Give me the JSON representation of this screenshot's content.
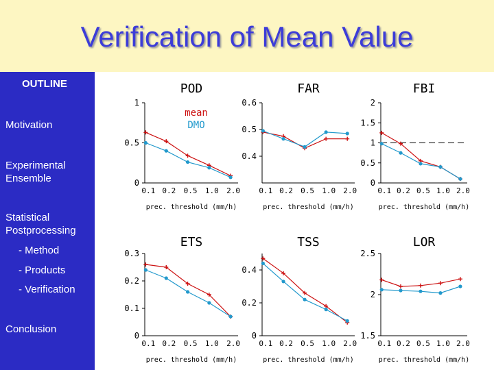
{
  "title": "Verification of Mean Value",
  "sidebar": {
    "outline": "OUTLINE",
    "items": [
      {
        "label": "Motivation"
      },
      {
        "label": "Experimental\nEnsemble"
      },
      {
        "label": "Statistical\nPostprocessing"
      },
      {
        "label": "- Method"
      },
      {
        "label": "- Products"
      },
      {
        "label": "- Verification"
      },
      {
        "label": "Conclusion"
      }
    ]
  },
  "colors": {
    "title": "#3c3cd8",
    "sidebar": "#2b2bc4",
    "header": "#fdf6c2",
    "mean": "#cc1111",
    "dmo": "#2299cc"
  },
  "legend": {
    "mean": "mean",
    "dmo": "DMO"
  },
  "chart_data": [
    {
      "type": "line",
      "title": "POD",
      "categories": [
        "0.1",
        "0.2",
        "0.5",
        "1.0",
        "2.0"
      ],
      "xlabel": "prec. threshold (mm/h)",
      "ylim": [
        0,
        1
      ],
      "yticks": [
        "0",
        "0.5",
        "1"
      ],
      "series": [
        {
          "name": "mean",
          "values": [
            0.63,
            0.52,
            0.34,
            0.22,
            0.09
          ]
        },
        {
          "name": "DMO",
          "values": [
            0.5,
            0.4,
            0.26,
            0.19,
            0.07
          ]
        }
      ]
    },
    {
      "type": "line",
      "title": "FAR",
      "categories": [
        "0.1",
        "0.2",
        "0.5",
        "1.0",
        "2.0"
      ],
      "xlabel": "prec. threshold (mm/h)",
      "ylim": [
        0.3,
        0.6
      ],
      "yticks": [
        "0.4",
        "0.5",
        "0.6"
      ],
      "series": [
        {
          "name": "mean",
          "values": [
            0.49,
            0.475,
            0.43,
            0.465,
            0.465
          ]
        },
        {
          "name": "DMO",
          "values": [
            0.495,
            0.465,
            0.435,
            0.49,
            0.485
          ]
        }
      ]
    },
    {
      "type": "line",
      "title": "FBI",
      "categories": [
        "0.1",
        "0.2",
        "0.5",
        "1.0",
        "2.0"
      ],
      "xlabel": "prec. threshold (mm/h)",
      "ylim": [
        0,
        2
      ],
      "yticks": [
        "0",
        "0.5",
        "1",
        "1.5",
        "2"
      ],
      "reference_line": 1,
      "series": [
        {
          "name": "mean",
          "values": [
            1.25,
            0.98,
            0.55,
            0.4,
            0.1
          ]
        },
        {
          "name": "DMO",
          "values": [
            0.98,
            0.75,
            0.48,
            0.4,
            0.1
          ]
        }
      ]
    },
    {
      "type": "line",
      "title": "ETS",
      "categories": [
        "0.1",
        "0.2",
        "0.5",
        "1.0",
        "2.0"
      ],
      "xlabel": "prec. threshold (mm/h)",
      "ylim": [
        0,
        0.3
      ],
      "yticks": [
        "0",
        "0.1",
        "0.2",
        "0.3"
      ],
      "series": [
        {
          "name": "mean",
          "values": [
            0.26,
            0.25,
            0.19,
            0.15,
            0.07
          ]
        },
        {
          "name": "DMO",
          "values": [
            0.24,
            0.21,
            0.16,
            0.12,
            0.07
          ]
        }
      ]
    },
    {
      "type": "line",
      "title": "TSS",
      "categories": [
        "0.1",
        "0.2",
        "0.5",
        "1.0",
        "2.0"
      ],
      "xlabel": "prec. threshold (mm/h)",
      "ylim": [
        0,
        0.5
      ],
      "yticks": [
        "0",
        "0.2",
        "0.4"
      ],
      "series": [
        {
          "name": "mean",
          "values": [
            0.47,
            0.38,
            0.26,
            0.18,
            0.08
          ]
        },
        {
          "name": "DMO",
          "values": [
            0.44,
            0.33,
            0.22,
            0.16,
            0.09
          ]
        }
      ]
    },
    {
      "type": "line",
      "title": "LOR",
      "categories": [
        "0.1",
        "0.2",
        "0.5",
        "1.0",
        "2.0"
      ],
      "xlabel": "prec. threshold (mm/h)",
      "ylim": [
        1.5,
        2.5
      ],
      "yticks": [
        "1.5",
        "2",
        "2.5"
      ],
      "series": [
        {
          "name": "mean",
          "values": [
            2.18,
            2.1,
            2.11,
            2.14,
            2.19
          ]
        },
        {
          "name": "DMO",
          "values": [
            2.06,
            2.05,
            2.04,
            2.02,
            2.1
          ]
        }
      ]
    }
  ]
}
